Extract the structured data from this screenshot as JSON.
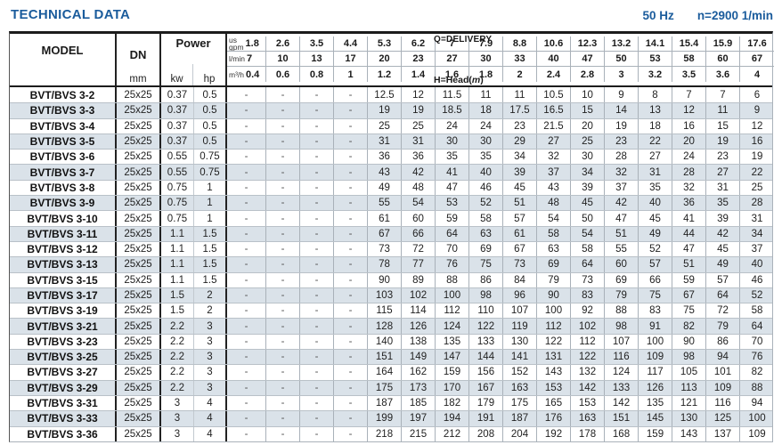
{
  "page": {
    "title": "TECHNICAL DATA",
    "frequency": "50 Hz",
    "speed": "n=2900 1/min"
  },
  "colors": {
    "accent_blue": "#1b5c9c",
    "row_stripe": "#dae2e9",
    "border_dark": "#1c1c1c",
    "grid_line": "#a9b1b9"
  },
  "table": {
    "headers": {
      "model": "MODEL",
      "dn": "DN",
      "dn_unit": "mm",
      "power": "Power",
      "kw": "kw",
      "hp": "hp",
      "q_delivery": "Q=DELIVERY",
      "h_head_prefix": "H=Head(",
      "h_head_unit": "m",
      "h_head_suffix": ")",
      "unit_gpm_top": "us",
      "unit_gpm": "gpm",
      "unit_lmin": "l/min",
      "unit_m3h": "m³/h"
    },
    "delivery": {
      "us_gpm": [
        "1.8",
        "2.6",
        "3.5",
        "4.4",
        "5.3",
        "6.2",
        "7",
        "7.9",
        "8.8",
        "10.6",
        "12.3",
        "13.2",
        "14.1",
        "15.4",
        "15.9",
        "17.6"
      ],
      "l_min": [
        "7",
        "10",
        "13",
        "17",
        "20",
        "23",
        "27",
        "30",
        "33",
        "40",
        "47",
        "50",
        "53",
        "58",
        "60",
        "67"
      ],
      "m3_h": [
        "0.4",
        "0.6",
        "0.8",
        "1",
        "1.2",
        "1.4",
        "1.6",
        "1.8",
        "2",
        "2.4",
        "2.8",
        "3",
        "3.2",
        "3.5",
        "3.6",
        "4"
      ]
    },
    "rows": [
      {
        "model": "BVT/BVS 3-2",
        "dn": "25x25",
        "kw": "0.37",
        "hp": "0.5",
        "head": [
          "-",
          "-",
          "-",
          "-",
          "12.5",
          "12",
          "11.5",
          "11",
          "11",
          "10.5",
          "10",
          "9",
          "8",
          "7",
          "7",
          "6"
        ]
      },
      {
        "model": "BVT/BVS 3-3",
        "dn": "25x25",
        "kw": "0.37",
        "hp": "0.5",
        "head": [
          "-",
          "-",
          "-",
          "-",
          "19",
          "19",
          "18.5",
          "18",
          "17.5",
          "16.5",
          "15",
          "14",
          "13",
          "12",
          "11",
          "9"
        ]
      },
      {
        "model": "BVT/BVS 3-4",
        "dn": "25x25",
        "kw": "0.37",
        "hp": "0.5",
        "head": [
          "-",
          "-",
          "-",
          "-",
          "25",
          "25",
          "24",
          "24",
          "23",
          "21.5",
          "20",
          "19",
          "18",
          "16",
          "15",
          "12"
        ]
      },
      {
        "model": "BVT/BVS 3-5",
        "dn": "25x25",
        "kw": "0.37",
        "hp": "0.5",
        "head": [
          "-",
          "-",
          "-",
          "-",
          "31",
          "31",
          "30",
          "30",
          "29",
          "27",
          "25",
          "23",
          "22",
          "20",
          "19",
          "16"
        ]
      },
      {
        "model": "BVT/BVS 3-6",
        "dn": "25x25",
        "kw": "0.55",
        "hp": "0.75",
        "head": [
          "-",
          "-",
          "-",
          "-",
          "36",
          "36",
          "35",
          "35",
          "34",
          "32",
          "30",
          "28",
          "27",
          "24",
          "23",
          "19"
        ]
      },
      {
        "model": "BVT/BVS 3-7",
        "dn": "25x25",
        "kw": "0.55",
        "hp": "0.75",
        "head": [
          "-",
          "-",
          "-",
          "-",
          "43",
          "42",
          "41",
          "40",
          "39",
          "37",
          "34",
          "32",
          "31",
          "28",
          "27",
          "22"
        ]
      },
      {
        "model": "BVT/BVS 3-8",
        "dn": "25x25",
        "kw": "0.75",
        "hp": "1",
        "head": [
          "-",
          "-",
          "-",
          "-",
          "49",
          "48",
          "47",
          "46",
          "45",
          "43",
          "39",
          "37",
          "35",
          "32",
          "31",
          "25"
        ]
      },
      {
        "model": "BVT/BVS 3-9",
        "dn": "25x25",
        "kw": "0.75",
        "hp": "1",
        "head": [
          "-",
          "-",
          "-",
          "-",
          "55",
          "54",
          "53",
          "52",
          "51",
          "48",
          "45",
          "42",
          "40",
          "36",
          "35",
          "28"
        ]
      },
      {
        "model": "BVT/BVS 3-10",
        "dn": "25x25",
        "kw": "0.75",
        "hp": "1",
        "head": [
          "-",
          "-",
          "-",
          "-",
          "61",
          "60",
          "59",
          "58",
          "57",
          "54",
          "50",
          "47",
          "45",
          "41",
          "39",
          "31"
        ]
      },
      {
        "model": "BVT/BVS 3-11",
        "dn": "25x25",
        "kw": "1.1",
        "hp": "1.5",
        "head": [
          "-",
          "-",
          "-",
          "-",
          "67",
          "66",
          "64",
          "63",
          "61",
          "58",
          "54",
          "51",
          "49",
          "44",
          "42",
          "34"
        ]
      },
      {
        "model": "BVT/BVS 3-12",
        "dn": "25x25",
        "kw": "1.1",
        "hp": "1.5",
        "head": [
          "-",
          "-",
          "-",
          "-",
          "73",
          "72",
          "70",
          "69",
          "67",
          "63",
          "58",
          "55",
          "52",
          "47",
          "45",
          "37"
        ]
      },
      {
        "model": "BVT/BVS 3-13",
        "dn": "25x25",
        "kw": "1.1",
        "hp": "1.5",
        "head": [
          "-",
          "-",
          "-",
          "-",
          "78",
          "77",
          "76",
          "75",
          "73",
          "69",
          "64",
          "60",
          "57",
          "51",
          "49",
          "40"
        ]
      },
      {
        "model": "BVT/BVS 3-15",
        "dn": "25x25",
        "kw": "1.1",
        "hp": "1.5",
        "head": [
          "-",
          "-",
          "-",
          "-",
          "90",
          "89",
          "88",
          "86",
          "84",
          "79",
          "73",
          "69",
          "66",
          "59",
          "57",
          "46"
        ]
      },
      {
        "model": "BVT/BVS 3-17",
        "dn": "25x25",
        "kw": "1.5",
        "hp": "2",
        "head": [
          "-",
          "-",
          "-",
          "-",
          "103",
          "102",
          "100",
          "98",
          "96",
          "90",
          "83",
          "79",
          "75",
          "67",
          "64",
          "52"
        ]
      },
      {
        "model": "BVT/BVS 3-19",
        "dn": "25x25",
        "kw": "1.5",
        "hp": "2",
        "head": [
          "-",
          "-",
          "-",
          "-",
          "115",
          "114",
          "112",
          "110",
          "107",
          "100",
          "92",
          "88",
          "83",
          "75",
          "72",
          "58"
        ]
      },
      {
        "model": "BVT/BVS 3-21",
        "dn": "25x25",
        "kw": "2.2",
        "hp": "3",
        "head": [
          "-",
          "-",
          "-",
          "-",
          "128",
          "126",
          "124",
          "122",
          "119",
          "112",
          "102",
          "98",
          "91",
          "82",
          "79",
          "64"
        ]
      },
      {
        "model": "BVT/BVS 3-23",
        "dn": "25x25",
        "kw": "2.2",
        "hp": "3",
        "head": [
          "-",
          "-",
          "-",
          "-",
          "140",
          "138",
          "135",
          "133",
          "130",
          "122",
          "112",
          "107",
          "100",
          "90",
          "86",
          "70"
        ]
      },
      {
        "model": "BVT/BVS 3-25",
        "dn": "25x25",
        "kw": "2.2",
        "hp": "3",
        "head": [
          "-",
          "-",
          "-",
          "-",
          "151",
          "149",
          "147",
          "144",
          "141",
          "131",
          "122",
          "116",
          "109",
          "98",
          "94",
          "76"
        ]
      },
      {
        "model": "BVT/BVS 3-27",
        "dn": "25x25",
        "kw": "2.2",
        "hp": "3",
        "head": [
          "-",
          "-",
          "-",
          "-",
          "164",
          "162",
          "159",
          "156",
          "152",
          "143",
          "132",
          "124",
          "117",
          "105",
          "101",
          "82"
        ]
      },
      {
        "model": "BVT/BVS 3-29",
        "dn": "25x25",
        "kw": "2.2",
        "hp": "3",
        "head": [
          "-",
          "-",
          "-",
          "-",
          "175",
          "173",
          "170",
          "167",
          "163",
          "153",
          "142",
          "133",
          "126",
          "113",
          "109",
          "88"
        ]
      },
      {
        "model": "BVT/BVS 3-31",
        "dn": "25x25",
        "kw": "3",
        "hp": "4",
        "head": [
          "-",
          "-",
          "-",
          "-",
          "187",
          "185",
          "182",
          "179",
          "175",
          "165",
          "153",
          "142",
          "135",
          "121",
          "116",
          "94"
        ]
      },
      {
        "model": "BVT/BVS 3-33",
        "dn": "25x25",
        "kw": "3",
        "hp": "4",
        "head": [
          "-",
          "-",
          "-",
          "-",
          "199",
          "197",
          "194",
          "191",
          "187",
          "176",
          "163",
          "151",
          "145",
          "130",
          "125",
          "100"
        ]
      },
      {
        "model": "BVT/BVS 3-36",
        "dn": "25x25",
        "kw": "3",
        "hp": "4",
        "head": [
          "-",
          "-",
          "-",
          "-",
          "218",
          "215",
          "212",
          "208",
          "204",
          "192",
          "178",
          "168",
          "159",
          "143",
          "137",
          "109"
        ]
      }
    ]
  }
}
